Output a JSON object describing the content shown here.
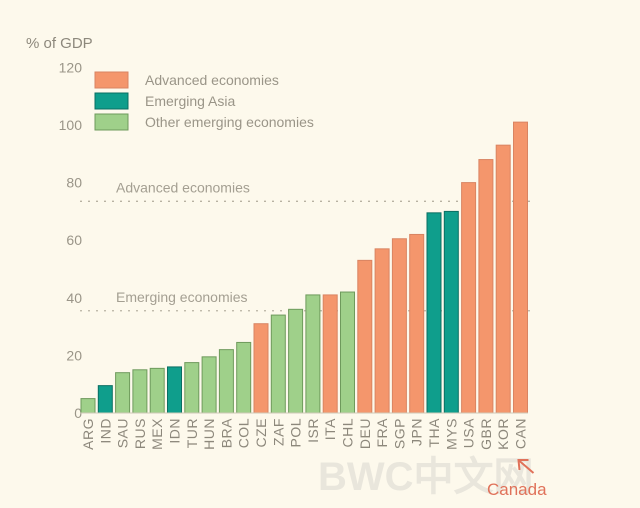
{
  "chart_data": {
    "type": "bar",
    "title": "",
    "ylabel": "% of GDP",
    "xlabel": "",
    "ylim": [
      0,
      120
    ],
    "yticks": [
      0,
      20,
      40,
      60,
      80,
      100,
      120
    ],
    "grid": false,
    "legend_position": "top-left",
    "legend": [
      {
        "key": "advanced",
        "label": "Advanced economies",
        "color": "#f4966c"
      },
      {
        "key": "asia",
        "label": "Emerging Asia",
        "color": "#0f9e8c"
      },
      {
        "key": "other",
        "label": "Other emerging economies",
        "color": "#9fd08a"
      }
    ],
    "categories": [
      "ARG",
      "IND",
      "SAU",
      "RUS",
      "MEX",
      "IDN",
      "TUR",
      "HUN",
      "BRA",
      "COL",
      "CZE",
      "ZAF",
      "POL",
      "ISR",
      "ITA",
      "CHL",
      "DEU",
      "FRA",
      "SGP",
      "JPN",
      "THA",
      "MYS",
      "USA",
      "GBR",
      "KOR",
      "CAN"
    ],
    "groups": [
      "other",
      "asia",
      "other",
      "other",
      "other",
      "asia",
      "other",
      "other",
      "other",
      "other",
      "advanced",
      "other",
      "other",
      "other",
      "advanced",
      "other",
      "advanced",
      "advanced",
      "advanced",
      "advanced",
      "asia",
      "asia",
      "advanced",
      "advanced",
      "advanced",
      "advanced"
    ],
    "values": [
      5,
      9.5,
      14,
      15,
      15.5,
      16,
      17.5,
      19.5,
      22,
      24.5,
      31,
      34,
      36,
      41,
      41,
      42,
      53,
      57,
      60.5,
      62,
      69.5,
      70,
      80,
      88,
      93,
      101
    ],
    "reference_lines": [
      {
        "label": "Advanced economies",
        "value": 73.5
      },
      {
        "label": "Emerging economies",
        "value": 35.5
      }
    ],
    "annotations": [
      {
        "text": "Canada",
        "target": "CAN",
        "arrow": true
      }
    ]
  },
  "watermark": "BWC中文网"
}
